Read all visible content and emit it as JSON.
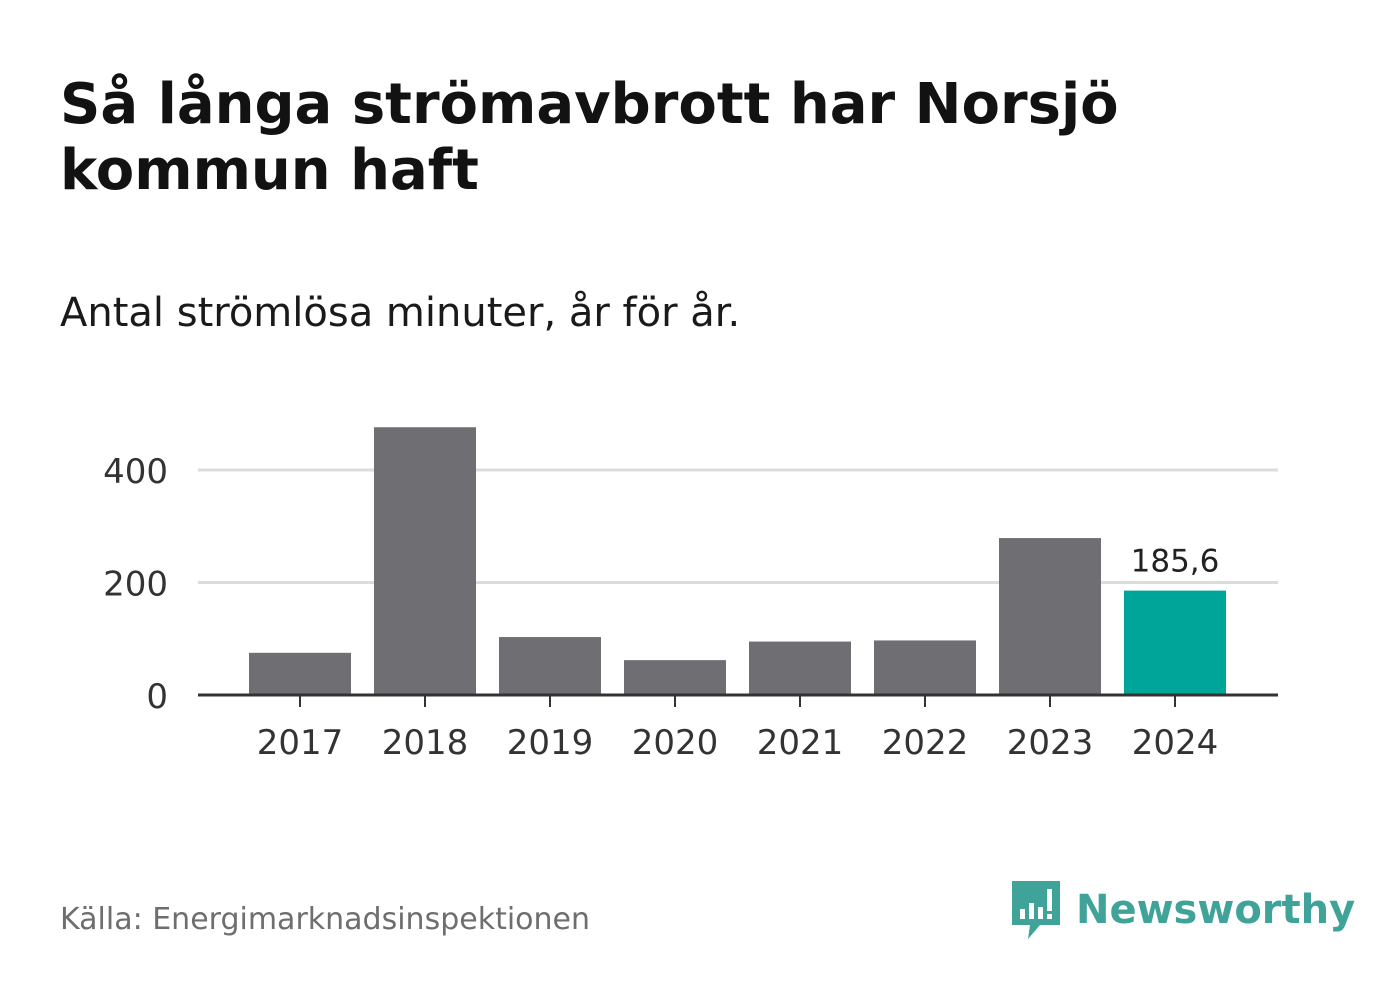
{
  "header": {
    "title": "Så långa strömavbrott har Norsjö kommun haft",
    "subtitle": "Antal strömlösa minuter, år för år."
  },
  "footer": {
    "source": "Källa: Energimarknadsinspektionen",
    "brand": "Newsworthy"
  },
  "colors": {
    "bar": "#6f6e73",
    "highlight": "#00a59a",
    "grid": "#dcdcdc",
    "axis": "#333333",
    "brand": "#3fa39a"
  },
  "icons": {
    "brand_logo": "newsworthy-logo-icon"
  },
  "chart_data": {
    "type": "bar",
    "title": "Så långa strömavbrott har Norsjö kommun haft",
    "subtitle": "Antal strömlösa minuter, år för år.",
    "xlabel": "",
    "ylabel": "",
    "categories": [
      "2017",
      "2018",
      "2019",
      "2020",
      "2021",
      "2022",
      "2023",
      "2024"
    ],
    "values": [
      75,
      476,
      103,
      62,
      95,
      97,
      279,
      185.6
    ],
    "highlight_index": 7,
    "data_labels": [
      {
        "index": 7,
        "text": "185,6"
      }
    ],
    "ylim": [
      0,
      480
    ],
    "yticks": [
      0,
      200,
      400
    ],
    "ytick_labels": [
      "0",
      "200",
      "400"
    ],
    "grid": true
  }
}
